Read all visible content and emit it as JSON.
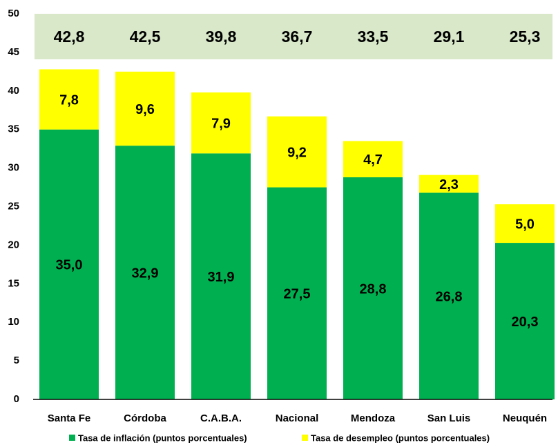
{
  "chart_data": {
    "type": "stacked-bar",
    "categories": [
      "Santa Fe",
      "Córdoba",
      "C.A.B.A.",
      "Nacional",
      "Mendoza",
      "San Luis",
      "Neuquén"
    ],
    "series": [
      {
        "name": "Tasa de inflación (puntos porcentuales)",
        "color": "#00b050",
        "values": [
          35.0,
          32.9,
          31.9,
          27.5,
          28.8,
          26.8,
          20.3
        ],
        "value_labels": [
          "35,0",
          "32,9",
          "31,9",
          "27,5",
          "28,8",
          "26,8",
          "20,3"
        ]
      },
      {
        "name": "Tasa de desempleo (puntos porcentuales)",
        "color": "#ffff00",
        "values": [
          7.8,
          9.6,
          7.9,
          9.2,
          4.7,
          2.3,
          5.0
        ],
        "value_labels": [
          "7,8",
          "9,6",
          "7,9",
          "9,2",
          "4,7",
          "2,3",
          "5,0"
        ]
      }
    ],
    "totals": [
      42.8,
      42.5,
      39.8,
      36.7,
      33.5,
      29.1,
      25.3
    ],
    "total_labels": [
      "42,8",
      "42,5",
      "39,8",
      "36,7",
      "33,5",
      "29,1",
      "25,3"
    ],
    "totals_band_color": "#d8e8c8",
    "ylim": [
      0,
      50
    ],
    "yticks": [
      0,
      5,
      10,
      15,
      20,
      25,
      30,
      35,
      40,
      45,
      50
    ],
    "legend": "bottom"
  }
}
